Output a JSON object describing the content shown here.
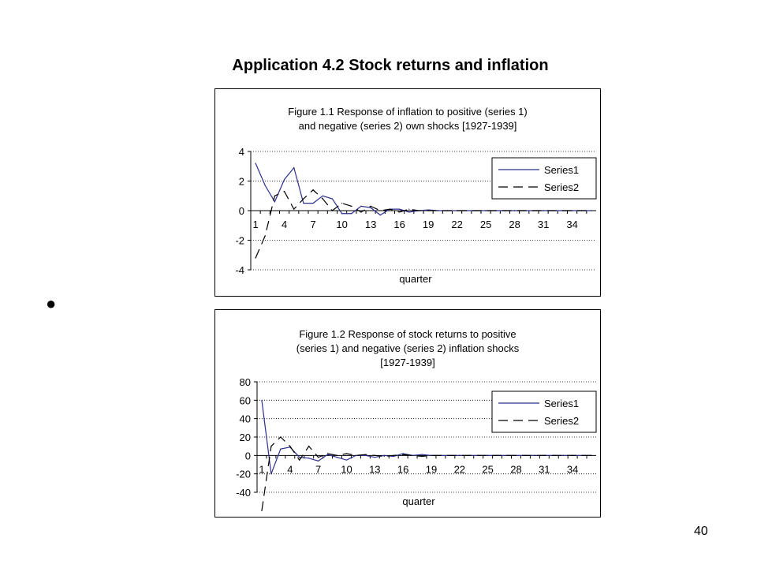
{
  "slide": {
    "title": "Application 4.2  Stock returns and inflation",
    "bullet": "●",
    "page_number": "40"
  },
  "colors": {
    "series1": "#2b2f8f",
    "series2": "#000000",
    "grid": "#000000",
    "frame": "#000000"
  },
  "chart_data": [
    {
      "type": "line",
      "title_lines": [
        "Figure 1.1 Response of inflation to positive (series 1)",
        "and negative (series 2) own shocks [1927-1939]"
      ],
      "xlabel": "quarter",
      "ylabel": "",
      "ylim": [
        -4,
        4
      ],
      "y_ticks": [
        "4",
        "2",
        "0",
        "-2",
        "-4"
      ],
      "x_tick_labels": [
        "1",
        "4",
        "7",
        "10",
        "13",
        "16",
        "19",
        "22",
        "25",
        "28",
        "31",
        "34"
      ],
      "gridlines": [
        4,
        2,
        -2,
        -4
      ],
      "legend_position": "right",
      "x": [
        1,
        2,
        3,
        4,
        5,
        6,
        7,
        8,
        9,
        10,
        11,
        12,
        13,
        14,
        15,
        16,
        17,
        18,
        19,
        20,
        21,
        22,
        23,
        24,
        25,
        26,
        27,
        28,
        29,
        30,
        31,
        32,
        33,
        34,
        35,
        36
      ],
      "series": [
        {
          "name": "Series1",
          "style": "solid",
          "values": [
            3.2,
            1.7,
            0.6,
            2.1,
            2.9,
            0.5,
            0.5,
            1.0,
            0.8,
            -0.2,
            -0.2,
            0.3,
            0.2,
            -0.3,
            0.1,
            0.1,
            -0.1,
            0,
            0.05,
            0,
            0,
            0,
            0,
            0,
            0,
            0,
            0,
            0,
            0,
            0,
            0,
            0,
            0,
            0,
            0,
            0
          ]
        },
        {
          "name": "Series2",
          "style": "dashed",
          "values": [
            -3.2,
            -1.7,
            1.0,
            1.3,
            0.1,
            0.8,
            1.4,
            0.8,
            0,
            0.5,
            0.3,
            -0.1,
            0.3,
            0,
            0.1,
            -0.1,
            0.1,
            0,
            0,
            0,
            0,
            0,
            0,
            0,
            0,
            0,
            0,
            0,
            0,
            0,
            0,
            0,
            0,
            0,
            0,
            0
          ]
        }
      ]
    },
    {
      "type": "line",
      "title_lines": [
        "Figure 1.2  Response of stock returns to positive",
        "(series 1) and negative (series 2) inflation shocks",
        "[1927-1939]"
      ],
      "xlabel": "quarter",
      "ylabel": "",
      "ylim": [
        -40,
        80
      ],
      "y_ticks": [
        "80",
        "60",
        "40",
        "20",
        "0",
        "-20",
        "-40"
      ],
      "x_tick_labels": [
        "1",
        "4",
        "7",
        "10",
        "13",
        "16",
        "19",
        "22",
        "25",
        "28",
        "31",
        "34"
      ],
      "gridlines": [
        80,
        60,
        40,
        20,
        -20,
        -40
      ],
      "legend_position": "right",
      "x": [
        1,
        2,
        3,
        4,
        5,
        6,
        7,
        8,
        9,
        10,
        11,
        12,
        13,
        14,
        15,
        16,
        17,
        18,
        19,
        20,
        21,
        22,
        23,
        24,
        25,
        26,
        27,
        28,
        29,
        30,
        31,
        32,
        33,
        34,
        35,
        36
      ],
      "series": [
        {
          "name": "Series1",
          "style": "solid",
          "values": [
            60,
            -20,
            7,
            9,
            -2,
            -3,
            -6,
            1,
            -2,
            -5,
            0,
            0,
            -2,
            0,
            -1,
            2,
            0,
            1,
            0,
            0,
            0,
            0,
            0,
            0,
            0,
            0,
            0,
            0,
            0,
            0,
            0,
            0,
            0,
            0,
            0,
            0
          ]
        },
        {
          "name": "Series2",
          "style": "dashed",
          "values": [
            -60,
            10,
            20,
            10,
            -5,
            10,
            -2,
            2,
            0,
            2,
            0,
            1,
            0,
            -1,
            0,
            1,
            0,
            -1,
            0,
            0,
            0,
            0,
            0,
            0,
            0,
            0,
            0,
            0,
            0,
            0,
            0,
            0,
            0,
            0,
            0,
            0
          ]
        }
      ]
    }
  ]
}
